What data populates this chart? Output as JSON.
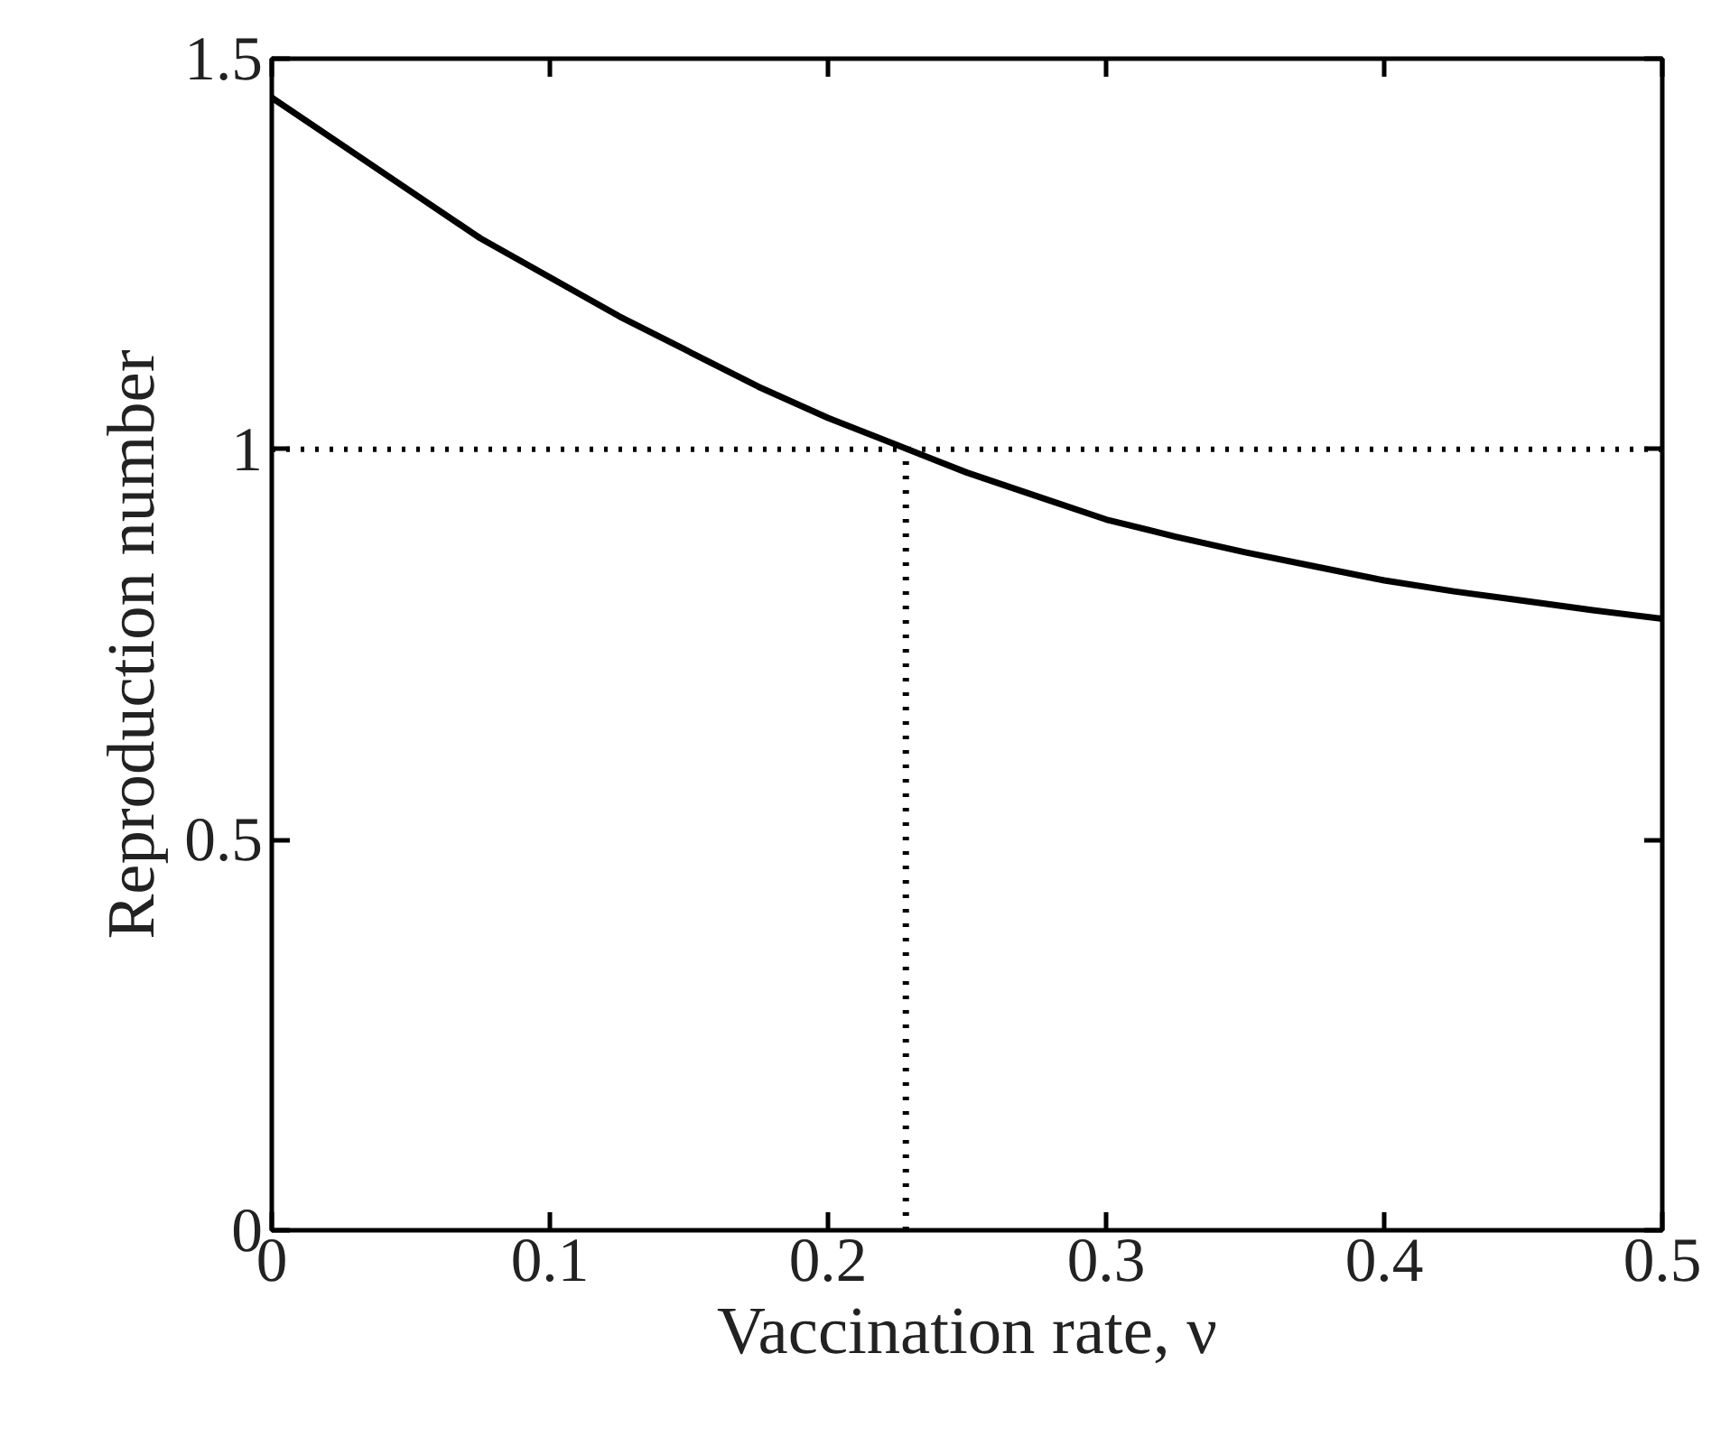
{
  "chart_data": {
    "type": "line",
    "xlabel": "Vaccination rate, ν",
    "ylabel": "Reproduction number",
    "xlim": [
      0,
      0.5
    ],
    "ylim": [
      0,
      1.5
    ],
    "xticks": [
      0,
      0.1,
      0.2,
      0.3,
      0.4,
      0.5
    ],
    "yticks": [
      0,
      0.5,
      1,
      1.5
    ],
    "series": [
      {
        "color": "#000000",
        "line_style": "solid",
        "x": [
          0,
          0.025,
          0.05,
          0.075,
          0.1,
          0.125,
          0.15,
          0.175,
          0.2,
          0.225,
          0.25,
          0.275,
          0.3,
          0.325,
          0.35,
          0.375,
          0.4,
          0.425,
          0.45,
          0.475,
          0.5
        ],
        "values": [
          1.45,
          1.39,
          1.33,
          1.27,
          1.22,
          1.17,
          1.125,
          1.08,
          1.04,
          1.005,
          0.97,
          0.94,
          0.91,
          0.888,
          0.868,
          0.85,
          0.832,
          0.818,
          0.806,
          0.794,
          0.783
        ]
      },
      {
        "color": "#000000",
        "line_style": "dotted",
        "x": [
          0.228,
          0.228
        ],
        "values": [
          0,
          1
        ]
      }
    ],
    "ref_lines": [
      {
        "axis": "y",
        "value": 1,
        "color": "#000000",
        "line_style": "dotted"
      }
    ]
  }
}
